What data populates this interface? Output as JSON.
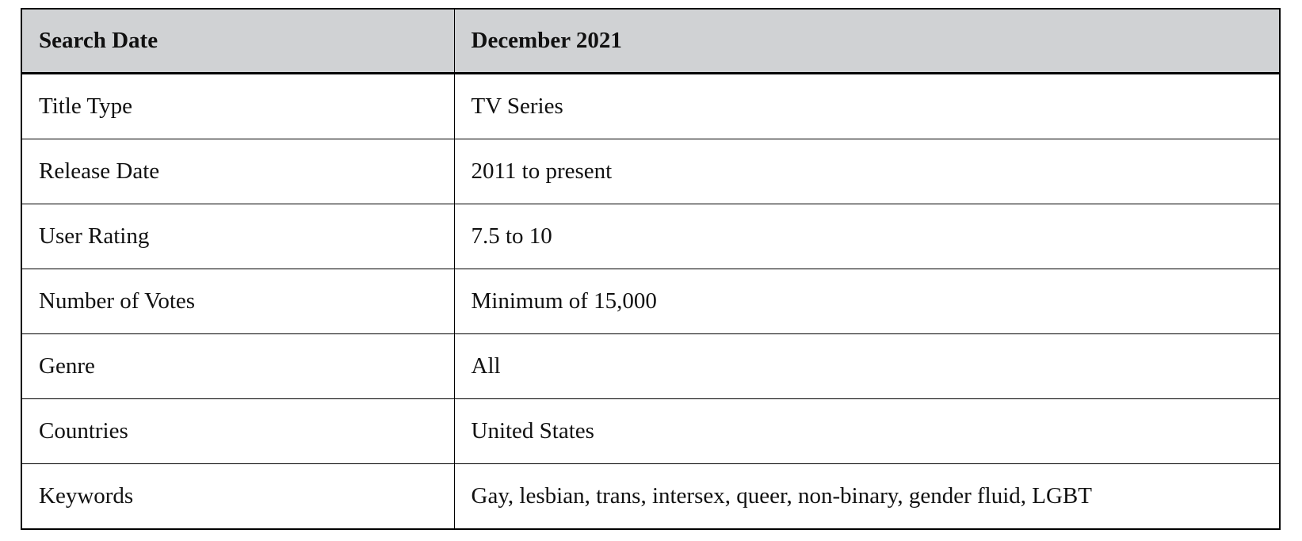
{
  "table": {
    "header": {
      "label": "Search Date",
      "value": "December 2021"
    },
    "rows": [
      {
        "label": "Title Type",
        "value": "TV Series"
      },
      {
        "label": "Release Date",
        "value": "2011 to present"
      },
      {
        "label": "User Rating",
        "value": "7.5 to 10"
      },
      {
        "label": "Number of Votes",
        "value": "Minimum of 15,000"
      },
      {
        "label": "Genre",
        "value": "All"
      },
      {
        "label": "Countries",
        "value": "United States"
      },
      {
        "label": "Keywords",
        "value": "Gay, lesbian, trans, intersex, queer, non-binary, gender fluid, LGBT"
      }
    ],
    "colors": {
      "header_bg": "#d0d2d4",
      "border": "#000000",
      "row_bg": "#ffffff",
      "text": "#111111"
    }
  }
}
